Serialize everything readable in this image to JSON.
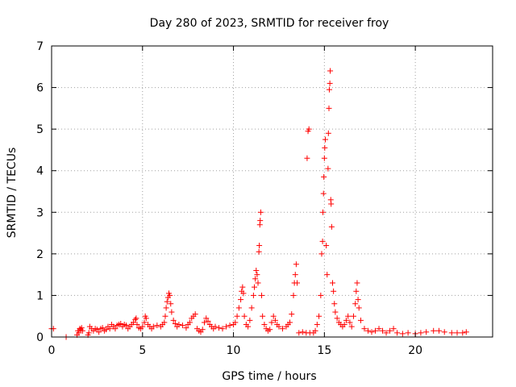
{
  "chart_data": {
    "type": "scatter",
    "title": "Day 280 of 2023, SRMTID for receiver froy",
    "xlabel": "GPS time / hours",
    "ylabel": "SRMTID / TECUs",
    "xlim": [
      0,
      24.25
    ],
    "ylim": [
      0,
      7
    ],
    "xticks": [
      0,
      5,
      10,
      15,
      20
    ],
    "yticks": [
      0,
      1,
      2,
      3,
      4,
      5,
      6,
      7
    ],
    "grid": true,
    "marker": "plus",
    "series": [
      {
        "name": "SRMTID",
        "color": "#ff0000",
        "points": [
          [
            0.0,
            0.2
          ],
          [
            0.1,
            0.2
          ],
          [
            0.8,
            0.0
          ],
          [
            1.4,
            0.05
          ],
          [
            1.45,
            0.15
          ],
          [
            1.5,
            0.1
          ],
          [
            1.55,
            0.2
          ],
          [
            1.6,
            0.18
          ],
          [
            1.65,
            0.22
          ],
          [
            1.7,
            0.15
          ],
          [
            2.0,
            0.05
          ],
          [
            2.05,
            0.1
          ],
          [
            2.1,
            0.25
          ],
          [
            2.2,
            0.2
          ],
          [
            2.3,
            0.15
          ],
          [
            2.4,
            0.2
          ],
          [
            2.5,
            0.18
          ],
          [
            2.6,
            0.12
          ],
          [
            2.7,
            0.2
          ],
          [
            2.8,
            0.22
          ],
          [
            2.9,
            0.15
          ],
          [
            3.0,
            0.18
          ],
          [
            3.1,
            0.25
          ],
          [
            3.2,
            0.2
          ],
          [
            3.3,
            0.3
          ],
          [
            3.4,
            0.25
          ],
          [
            3.5,
            0.2
          ],
          [
            3.6,
            0.28
          ],
          [
            3.7,
            0.3
          ],
          [
            3.8,
            0.32
          ],
          [
            3.9,
            0.25
          ],
          [
            4.0,
            0.3
          ],
          [
            4.1,
            0.28
          ],
          [
            4.2,
            0.2
          ],
          [
            4.3,
            0.25
          ],
          [
            4.4,
            0.3
          ],
          [
            4.5,
            0.35
          ],
          [
            4.6,
            0.42
          ],
          [
            4.65,
            0.45
          ],
          [
            4.7,
            0.3
          ],
          [
            4.8,
            0.22
          ],
          [
            4.9,
            0.2
          ],
          [
            5.0,
            0.25
          ],
          [
            5.1,
            0.35
          ],
          [
            5.15,
            0.5
          ],
          [
            5.2,
            0.45
          ],
          [
            5.3,
            0.3
          ],
          [
            5.4,
            0.25
          ],
          [
            5.5,
            0.2
          ],
          [
            5.6,
            0.25
          ],
          [
            5.8,
            0.28
          ],
          [
            6.0,
            0.25
          ],
          [
            6.1,
            0.3
          ],
          [
            6.2,
            0.35
          ],
          [
            6.25,
            0.5
          ],
          [
            6.3,
            0.7
          ],
          [
            6.35,
            0.85
          ],
          [
            6.4,
            0.95
          ],
          [
            6.45,
            1.05
          ],
          [
            6.5,
            1.0
          ],
          [
            6.55,
            0.8
          ],
          [
            6.6,
            0.6
          ],
          [
            6.7,
            0.4
          ],
          [
            6.8,
            0.32
          ],
          [
            6.9,
            0.25
          ],
          [
            7.0,
            0.3
          ],
          [
            7.2,
            0.28
          ],
          [
            7.4,
            0.22
          ],
          [
            7.5,
            0.3
          ],
          [
            7.6,
            0.35
          ],
          [
            7.7,
            0.45
          ],
          [
            7.8,
            0.5
          ],
          [
            7.9,
            0.55
          ],
          [
            8.0,
            0.2
          ],
          [
            8.1,
            0.15
          ],
          [
            8.2,
            0.12
          ],
          [
            8.3,
            0.18
          ],
          [
            8.4,
            0.35
          ],
          [
            8.5,
            0.45
          ],
          [
            8.6,
            0.38
          ],
          [
            8.7,
            0.3
          ],
          [
            8.8,
            0.25
          ],
          [
            8.9,
            0.2
          ],
          [
            9.0,
            0.25
          ],
          [
            9.2,
            0.22
          ],
          [
            9.4,
            0.2
          ],
          [
            9.6,
            0.25
          ],
          [
            9.8,
            0.28
          ],
          [
            10.0,
            0.3
          ],
          [
            10.1,
            0.35
          ],
          [
            10.2,
            0.5
          ],
          [
            10.3,
            0.7
          ],
          [
            10.4,
            0.9
          ],
          [
            10.45,
            1.1
          ],
          [
            10.5,
            1.2
          ],
          [
            10.55,
            1.05
          ],
          [
            10.6,
            0.5
          ],
          [
            10.7,
            0.3
          ],
          [
            10.8,
            0.25
          ],
          [
            10.9,
            0.4
          ],
          [
            11.0,
            0.7
          ],
          [
            11.1,
            1.0
          ],
          [
            11.15,
            1.2
          ],
          [
            11.2,
            1.4
          ],
          [
            11.25,
            1.6
          ],
          [
            11.3,
            1.5
          ],
          [
            11.35,
            1.3
          ],
          [
            11.4,
            2.05
          ],
          [
            11.42,
            2.2
          ],
          [
            11.45,
            2.7
          ],
          [
            11.47,
            2.8
          ],
          [
            11.5,
            3.0
          ],
          [
            11.55,
            1.0
          ],
          [
            11.6,
            0.5
          ],
          [
            11.7,
            0.3
          ],
          [
            11.8,
            0.2
          ],
          [
            11.9,
            0.15
          ],
          [
            12.0,
            0.18
          ],
          [
            12.1,
            0.35
          ],
          [
            12.2,
            0.5
          ],
          [
            12.3,
            0.4
          ],
          [
            12.4,
            0.3
          ],
          [
            12.5,
            0.25
          ],
          [
            12.7,
            0.2
          ],
          [
            12.9,
            0.25
          ],
          [
            13.0,
            0.3
          ],
          [
            13.1,
            0.35
          ],
          [
            13.2,
            0.55
          ],
          [
            13.3,
            1.0
          ],
          [
            13.35,
            1.3
          ],
          [
            13.4,
            1.5
          ],
          [
            13.45,
            1.75
          ],
          [
            13.5,
            1.3
          ],
          [
            13.6,
            0.1
          ],
          [
            13.8,
            0.12
          ],
          [
            14.0,
            0.1
          ],
          [
            14.05,
            4.3
          ],
          [
            14.1,
            4.95
          ],
          [
            14.15,
            5.0
          ],
          [
            14.2,
            0.1
          ],
          [
            14.4,
            0.1
          ],
          [
            14.5,
            0.15
          ],
          [
            14.6,
            0.3
          ],
          [
            14.7,
            0.5
          ],
          [
            14.8,
            1.0
          ],
          [
            14.85,
            2.0
          ],
          [
            14.9,
            2.3
          ],
          [
            14.92,
            3.0
          ],
          [
            14.95,
            3.45
          ],
          [
            14.97,
            3.85
          ],
          [
            15.0,
            4.3
          ],
          [
            15.02,
            4.55
          ],
          [
            15.05,
            4.75
          ],
          [
            15.1,
            2.2
          ],
          [
            15.15,
            1.5
          ],
          [
            15.2,
            4.05
          ],
          [
            15.22,
            4.9
          ],
          [
            15.25,
            5.5
          ],
          [
            15.27,
            5.95
          ],
          [
            15.3,
            6.1
          ],
          [
            15.32,
            6.4
          ],
          [
            15.35,
            3.3
          ],
          [
            15.37,
            3.2
          ],
          [
            15.4,
            2.65
          ],
          [
            15.45,
            1.3
          ],
          [
            15.5,
            1.1
          ],
          [
            15.55,
            0.8
          ],
          [
            15.6,
            0.6
          ],
          [
            15.7,
            0.45
          ],
          [
            15.8,
            0.35
          ],
          [
            15.9,
            0.3
          ],
          [
            16.0,
            0.25
          ],
          [
            16.1,
            0.3
          ],
          [
            16.2,
            0.4
          ],
          [
            16.3,
            0.5
          ],
          [
            16.4,
            0.35
          ],
          [
            16.5,
            0.25
          ],
          [
            16.6,
            0.5
          ],
          [
            16.7,
            0.8
          ],
          [
            16.75,
            1.1
          ],
          [
            16.8,
            1.3
          ],
          [
            16.85,
            0.9
          ],
          [
            16.9,
            0.7
          ],
          [
            17.0,
            0.4
          ],
          [
            17.2,
            0.2
          ],
          [
            17.4,
            0.15
          ],
          [
            17.6,
            0.12
          ],
          [
            17.8,
            0.15
          ],
          [
            18.0,
            0.2
          ],
          [
            18.2,
            0.15
          ],
          [
            18.4,
            0.1
          ],
          [
            18.6,
            0.15
          ],
          [
            18.8,
            0.2
          ],
          [
            19.0,
            0.1
          ],
          [
            19.3,
            0.08
          ],
          [
            19.6,
            0.1
          ],
          [
            20.0,
            0.08
          ],
          [
            20.3,
            0.1
          ],
          [
            20.6,
            0.12
          ],
          [
            21.0,
            0.15
          ],
          [
            21.3,
            0.15
          ],
          [
            21.6,
            0.12
          ],
          [
            22.0,
            0.1
          ],
          [
            22.3,
            0.1
          ],
          [
            22.6,
            0.1
          ],
          [
            22.8,
            0.12
          ]
        ]
      }
    ]
  }
}
